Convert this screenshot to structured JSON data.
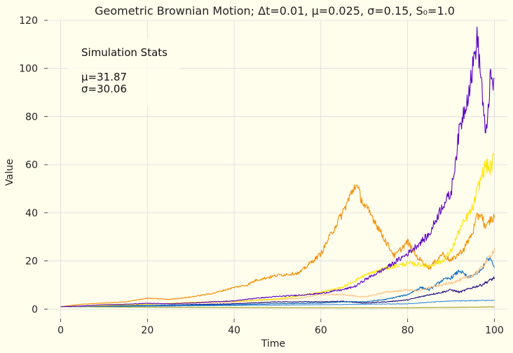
{
  "chart_data": {
    "type": "line",
    "title": "Geometric Brownian Motion; Δt=0.01, μ=0.025, σ=0.15, S₀=1.0",
    "xlabel": "Time",
    "ylabel": "Value",
    "xlim": [
      -3,
      103
    ],
    "ylim": [
      -4,
      120
    ],
    "xticks": [
      0,
      20,
      40,
      60,
      80,
      100
    ],
    "yticks": [
      0,
      20,
      40,
      60,
      80,
      100,
      120
    ],
    "grid": true,
    "annotation": {
      "heading": "Simulation Stats",
      "mu": "μ=31.87",
      "sigma": "σ=30.06"
    },
    "series": [
      {
        "color": "#5a00c8",
        "x": [
          0,
          5,
          10,
          15,
          20,
          25,
          30,
          35,
          40,
          45,
          50,
          55,
          60,
          63,
          65,
          68,
          70,
          75,
          80,
          85,
          88,
          90,
          92,
          94,
          95,
          96,
          97,
          98,
          99,
          100
        ],
        "y": [
          1,
          1.3,
          1.8,
          2.0,
          2.4,
          2.2,
          2.5,
          3.0,
          3.4,
          4.5,
          5.2,
          5.8,
          6.5,
          7.5,
          8.0,
          9.5,
          12,
          17,
          23,
          31,
          43,
          48,
          75,
          90,
          100,
          113,
          95,
          70,
          95,
          93
        ]
      },
      {
        "color": "#ffe600",
        "x": [
          0,
          10,
          20,
          30,
          40,
          50,
          55,
          60,
          65,
          70,
          75,
          80,
          85,
          88,
          90,
          92,
          95,
          97,
          98,
          99,
          100
        ],
        "y": [
          1,
          1.5,
          2,
          2.8,
          3.2,
          4.2,
          5.5,
          7,
          9,
          14,
          17,
          19,
          18,
          20,
          24,
          33,
          42,
          55,
          60,
          58,
          63
        ]
      },
      {
        "color": "#f28c00",
        "x": [
          0,
          5,
          10,
          15,
          20,
          25,
          30,
          35,
          40,
          43,
          45,
          50,
          55,
          60,
          62,
          65,
          68,
          70,
          72,
          75,
          77,
          80,
          82,
          85,
          88,
          90,
          93,
          95,
          96,
          97,
          98,
          99,
          100
        ],
        "y": [
          1,
          2,
          2.5,
          3,
          4.5,
          4,
          5,
          6.5,
          9,
          10,
          12,
          14,
          15,
          23,
          30,
          40,
          52,
          43,
          38,
          28,
          22,
          28,
          22,
          17,
          23,
          20,
          25,
          32,
          38,
          40,
          33,
          37,
          38
        ]
      },
      {
        "color": "#ffc080",
        "x": [
          0,
          20,
          40,
          50,
          55,
          60,
          65,
          70,
          75,
          80,
          83,
          85,
          88,
          90,
          92,
          95,
          97,
          99,
          100
        ],
        "y": [
          1,
          2,
          3,
          4,
          4.5,
          6,
          6,
          5,
          7,
          8,
          7.5,
          9,
          10,
          11,
          12,
          14,
          17,
          22,
          25
        ]
      },
      {
        "color": "#0066c0",
        "x": [
          0,
          20,
          40,
          50,
          60,
          65,
          70,
          75,
          80,
          83,
          85,
          88,
          90,
          92,
          94,
          95,
          97,
          98,
          99,
          100
        ],
        "y": [
          1,
          1.5,
          1.8,
          2.2,
          2.5,
          3,
          3,
          4,
          6,
          9,
          8,
          12,
          13,
          16,
          13,
          14,
          16,
          20,
          21,
          17
        ]
      },
      {
        "color": "#1a0a80",
        "x": [
          0,
          20,
          40,
          50,
          60,
          65,
          70,
          75,
          80,
          85,
          88,
          90,
          92,
          95,
          97,
          99,
          100
        ],
        "y": [
          1,
          1.5,
          2.2,
          3,
          3,
          3.2,
          2.5,
          3,
          3.8,
          6,
          7,
          8,
          7,
          9,
          10,
          12,
          13
        ]
      },
      {
        "color": "#3a8ee0",
        "x": [
          0,
          20,
          40,
          60,
          70,
          80,
          85,
          90,
          95,
          100
        ],
        "y": [
          1,
          1.2,
          1.5,
          1.8,
          2,
          2.2,
          2.8,
          3.4,
          3.5,
          3.6
        ]
      },
      {
        "color": "#a09a20",
        "x": [
          0,
          20,
          40,
          60,
          80,
          90,
          100
        ],
        "y": [
          1,
          0.8,
          0.6,
          0.5,
          0.5,
          0.7,
          0.9
        ]
      }
    ]
  }
}
